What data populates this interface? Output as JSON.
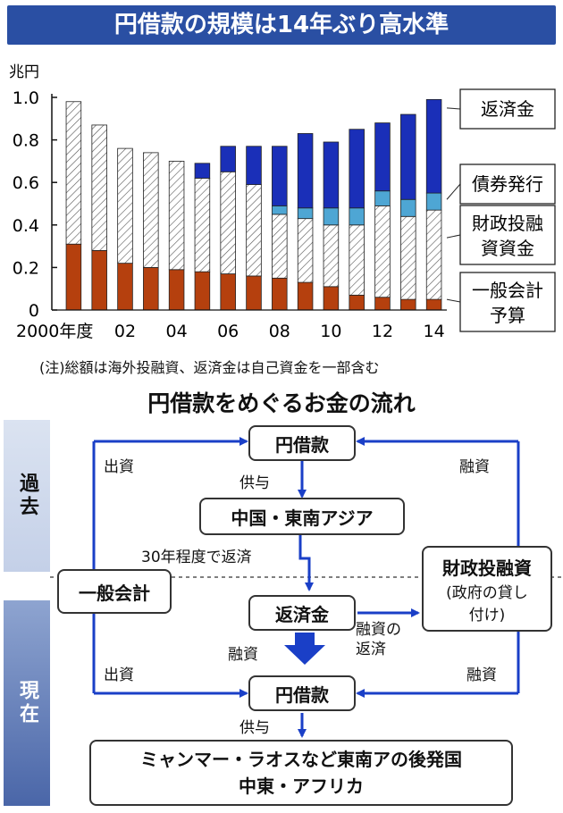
{
  "title": "円借款の規模は14年ぶり高水準",
  "chart_data": {
    "type": "bar",
    "stacked": true,
    "unit_label": "兆円",
    "categories": [
      "2000年度",
      "01",
      "02",
      "03",
      "04",
      "05",
      "06",
      "07",
      "08",
      "09",
      "10",
      "11",
      "12",
      "13",
      "14"
    ],
    "x_tick_labels": [
      "2000年度",
      "02",
      "04",
      "06",
      "08",
      "10",
      "12",
      "14"
    ],
    "ylim": [
      0,
      1.0
    ],
    "y_ticks": [
      "0",
      "0.2",
      "0.4",
      "0.6",
      "0.8",
      "1.0"
    ],
    "series": [
      {
        "name": "一般会計予算",
        "color": "#b5400e",
        "values": [
          0.31,
          0.28,
          0.22,
          0.2,
          0.19,
          0.18,
          0.17,
          0.16,
          0.15,
          0.13,
          0.11,
          0.07,
          0.06,
          0.05,
          0.05
        ]
      },
      {
        "name": "財政投融資資金",
        "color": "#ffffff",
        "pattern": "hatch",
        "values": [
          0.67,
          0.59,
          0.54,
          0.54,
          0.51,
          0.44,
          0.48,
          0.43,
          0.3,
          0.3,
          0.29,
          0.33,
          0.43,
          0.39,
          0.42
        ]
      },
      {
        "name": "債券発行",
        "color": "#4ea6d4",
        "values": [
          0,
          0,
          0,
          0,
          0,
          0,
          0,
          0,
          0.04,
          0.05,
          0.08,
          0.08,
          0.07,
          0.08,
          0.08
        ]
      },
      {
        "name": "返済金",
        "color": "#1a2fb8",
        "values": [
          0,
          0,
          0,
          0,
          0,
          0.07,
          0.12,
          0.18,
          0.28,
          0.35,
          0.31,
          0.37,
          0.32,
          0.4,
          0.44
        ]
      }
    ],
    "legend_labels": [
      "返済金",
      "債券発行",
      "財政投融資資金",
      "一般会計予算"
    ],
    "legend_lines": [
      [
        "返済金"
      ],
      [
        "債券発行"
      ],
      [
        "財政投融",
        "資資金"
      ],
      [
        "一般会計",
        "予算"
      ]
    ]
  },
  "note": "(注)総額は海外投融資、返済金は自己資金を一部含む",
  "flow": {
    "title": "円借款をめぐるお金の流れ",
    "era_past": "過去",
    "era_present": "現在",
    "box_yen_loan_past": "円借款",
    "box_recipients_past": "中国・東南アジア",
    "box_general_account": "一般会計",
    "box_fiscal_title": "財政投融資",
    "box_fiscal_sub1": "(政府の貸し",
    "box_fiscal_sub2": "付け)",
    "box_repayment": "返済金",
    "box_yen_loan_present": "円借款",
    "box_recipients_present_1": "ミャンマー・ラオスなど東南アの後発国",
    "box_recipients_present_2": "中東・アフリカ",
    "label_supply_1": "供与",
    "label_supply_2": "供与",
    "label_invest_past": "出資",
    "label_invest_present": "出資",
    "label_finance_past": "融資",
    "label_finance_present": "融資",
    "label_finance_mid": "融資",
    "label_repay_30yr": "30年程度で返済",
    "label_loan_repay_1": "融資の",
    "label_loan_repay_2": "返済"
  }
}
